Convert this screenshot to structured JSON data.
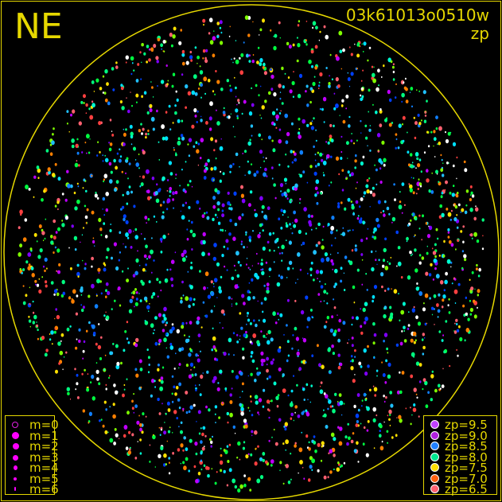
{
  "direction_label": "NE",
  "title": "03k61013o0510w",
  "subtitle": "zp",
  "colors": {
    "frame": "#e6d800",
    "background": "#000000"
  },
  "magnitude_legend": [
    {
      "label": "m=0",
      "size": 0
    },
    {
      "label": "m=1",
      "size": 1
    },
    {
      "label": "m=2",
      "size": 2
    },
    {
      "label": "m=3",
      "size": 3
    },
    {
      "label": "m=4",
      "size": 4
    },
    {
      "label": "m=5",
      "size": 5
    },
    {
      "label": "m=6",
      "size": 6
    }
  ],
  "zp_legend": [
    {
      "label": "zp=9.5",
      "color": "#c040ff"
    },
    {
      "label": "zp=9.0",
      "color": "#b020e0"
    },
    {
      "label": "zp=8.5",
      "color": "#2080ff"
    },
    {
      "label": "zp=8.0",
      "color": "#00e890"
    },
    {
      "label": "zp=7.5",
      "color": "#ffe000"
    },
    {
      "label": "zp=7.0",
      "color": "#ff6010"
    },
    {
      "label": "zp=6.5",
      "color": "#ff6070"
    }
  ]
}
